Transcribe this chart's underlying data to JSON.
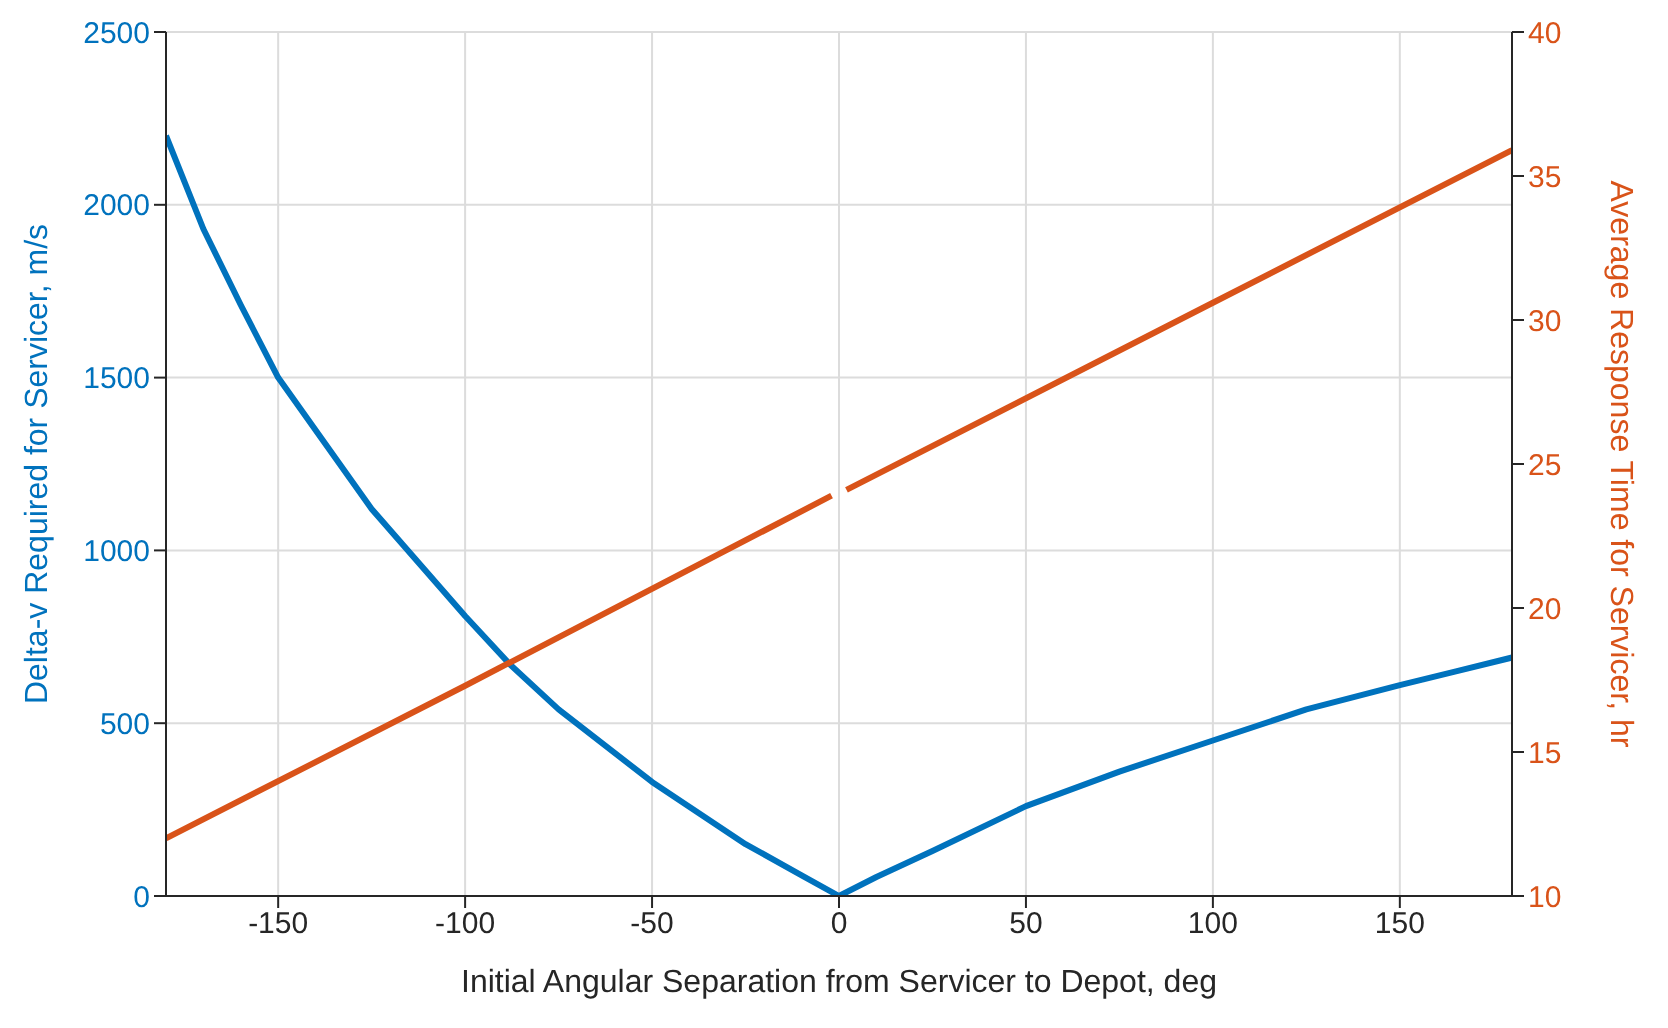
{
  "chart_data": {
    "type": "line",
    "xlabel": "Initial Angular Separation from Servicer to Depot, deg",
    "ylabel": "Delta-v Required for Servicer, m/s",
    "y2label": "Average Response Time for Servicer, hr",
    "xlim": [
      -180,
      180
    ],
    "xticks": [
      -150,
      -100,
      -50,
      0,
      50,
      100,
      150
    ],
    "ylim": [
      0,
      2500
    ],
    "yticks": [
      0,
      500,
      1000,
      1500,
      2000,
      2500
    ],
    "y2lim": [
      10,
      40
    ],
    "y2ticks": [
      10,
      15,
      20,
      25,
      30,
      35,
      40
    ],
    "grid": true,
    "line_style": "solid",
    "series": [
      {
        "color": "#0072bd",
        "x": [
          -180,
          -170,
          -160,
          -150,
          -125,
          -100,
          -88,
          -75,
          -50,
          -25,
          -10,
          0,
          10,
          25,
          50,
          75,
          100,
          125,
          150,
          165,
          180
        ],
        "values": [
          2200,
          1930,
          1710,
          1500,
          1120,
          810,
          670,
          540,
          330,
          150,
          60,
          0,
          55,
          130,
          260,
          360,
          450,
          540,
          610,
          650,
          690
        ]
      },
      {
        "color": "#d95319",
        "axis": "y2",
        "x": [
          -180,
          -100,
          -2,
          0,
          2,
          100,
          180
        ],
        "values": [
          12,
          17.3,
          23.9,
          null,
          24.1,
          30.6,
          35.9
        ]
      }
    ]
  }
}
